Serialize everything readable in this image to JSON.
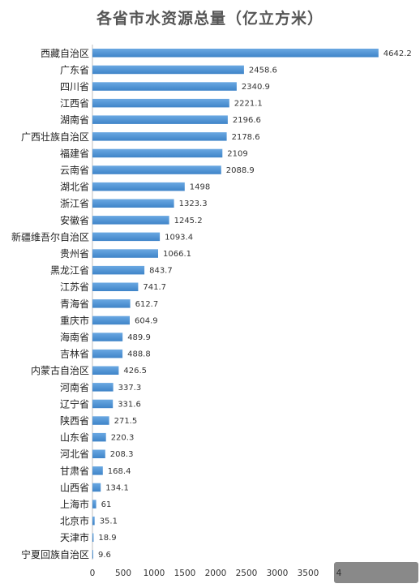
{
  "chart_data": {
    "type": "bar",
    "orientation": "horizontal",
    "title": "各省市水资源总量（亿立方米）",
    "categories": [
      "西藏自治区",
      "广东省",
      "四川省",
      "江西省",
      "湖南省",
      "广西壮族自治区",
      "福建省",
      "云南省",
      "湖北省",
      "浙江省",
      "安徽省",
      "新疆维吾尔自治区",
      "贵州省",
      "黑龙江省",
      "江苏省",
      "青海省",
      "重庆市",
      "海南省",
      "吉林省",
      "内蒙古自治区",
      "河南省",
      "辽宁省",
      "陕西省",
      "山东省",
      "河北省",
      "甘肃省",
      "山西省",
      "上海市",
      "北京市",
      "天津市",
      "宁夏回族自治区"
    ],
    "values": [
      4642.2,
      2458.6,
      2340.9,
      2221.1,
      2196.6,
      2178.6,
      2109,
      2088.9,
      1498,
      1323.3,
      1245.2,
      1093.4,
      1066.1,
      843.7,
      741.7,
      612.7,
      604.9,
      489.9,
      488.8,
      426.5,
      337.3,
      331.6,
      271.5,
      220.3,
      208.3,
      168.4,
      134.1,
      61,
      35.1,
      18.9,
      9.6
    ],
    "value_labels": [
      "4642.2",
      "2458.6",
      "2340.9",
      "2221.1",
      "2196.6",
      "2178.6",
      "2109",
      "2088.9",
      "1498",
      "1323.3",
      "1245.2",
      "1093.4",
      "1066.1",
      "843.7",
      "741.7",
      "612.7",
      "604.9",
      "489.9",
      "488.8",
      "426.5",
      "337.3",
      "331.6",
      "271.5",
      "220.3",
      "208.3",
      "168.4",
      "134.1",
      "61",
      "35.1",
      "18.9",
      "9.6"
    ],
    "x_ticks": [
      "0",
      "500",
      "1000",
      "1500",
      "2000",
      "2500",
      "3000",
      "3500",
      "4"
    ],
    "xlim": [
      0,
      4500
    ],
    "bar_color": "#4a8fd0",
    "grid": false,
    "legend": "none"
  }
}
